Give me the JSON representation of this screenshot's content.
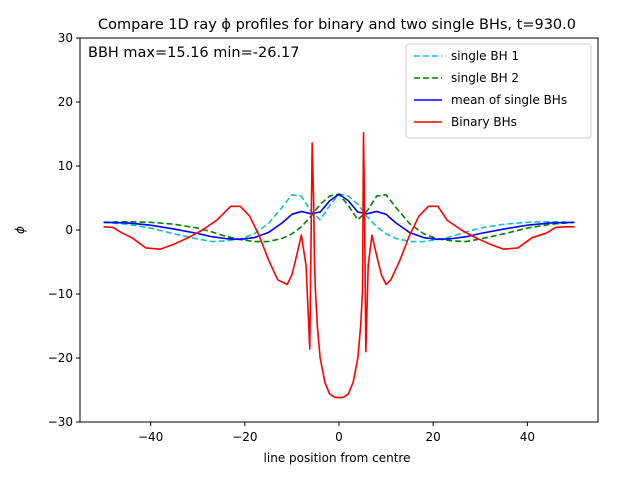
{
  "chart_data": {
    "type": "line",
    "title": "Compare 1D ray ϕ profiles for binary and two single BHs, t=930.0",
    "xlabel": "line position from centre",
    "ylabel": "ϕ",
    "xlim": [
      -55,
      55
    ],
    "ylim": [
      -30,
      30
    ],
    "xticks": [
      -40,
      -20,
      0,
      20,
      40
    ],
    "yticks": [
      -30,
      -20,
      -10,
      0,
      10,
      20,
      30
    ],
    "xtick_labels": [
      "−40",
      "−20",
      "0",
      "20",
      "40"
    ],
    "ytick_labels": [
      "−30",
      "−20",
      "−10",
      "0",
      "10",
      "20",
      "30"
    ],
    "annotation": "BBH max=15.16 min=-26.17",
    "legend_position": "upper-right",
    "grid": false,
    "series": [
      {
        "name": "single BH 1",
        "color": "#17becf",
        "style": "dashed",
        "x": [
          -50,
          -45,
          -40,
          -35,
          -30,
          -27,
          -24,
          -21,
          -18,
          -15,
          -12,
          -10,
          -8,
          -6,
          -4,
          -2,
          0,
          2,
          4,
          6,
          8,
          10,
          12,
          15,
          18,
          21,
          24,
          27,
          30,
          35,
          40,
          45,
          50
        ],
        "y": [
          1.2,
          0.9,
          0.3,
          -0.6,
          -1.4,
          -1.8,
          -1.7,
          -1.4,
          -0.6,
          1.0,
          3.6,
          5.5,
          5.3,
          3.0,
          1.6,
          3.8,
          5.6,
          5.3,
          4.0,
          2.1,
          0.5,
          -0.6,
          -1.3,
          -1.8,
          -1.8,
          -1.5,
          -1.0,
          -0.3,
          0.3,
          0.9,
          1.2,
          1.3,
          1.2
        ]
      },
      {
        "name": "single BH 2",
        "color": "#008000",
        "style": "dashed",
        "x": [
          -50,
          -45,
          -40,
          -35,
          -30,
          -27,
          -24,
          -21,
          -18,
          -15,
          -12,
          -10,
          -8,
          -6,
          -4,
          -2,
          0,
          2,
          4,
          6,
          8,
          10,
          12,
          15,
          18,
          21,
          24,
          27,
          30,
          35,
          40,
          45,
          50
        ],
        "y": [
          1.2,
          1.3,
          1.2,
          0.9,
          0.3,
          -0.3,
          -1.0,
          -1.5,
          -1.8,
          -1.8,
          -1.3,
          -0.6,
          0.5,
          2.1,
          4.0,
          5.3,
          5.6,
          3.8,
          1.6,
          3.0,
          5.3,
          5.5,
          3.6,
          1.0,
          -0.6,
          -1.4,
          -1.7,
          -1.8,
          -1.4,
          -0.6,
          0.3,
          0.9,
          1.2
        ]
      },
      {
        "name": "mean of single BHs",
        "color": "#0000ff",
        "style": "solid",
        "x": [
          -50,
          -45,
          -40,
          -35,
          -30,
          -27,
          -24,
          -21,
          -18,
          -15,
          -12,
          -10,
          -8,
          -6,
          -4,
          -2,
          0,
          2,
          4,
          6,
          8,
          10,
          12,
          15,
          18,
          21,
          24,
          27,
          30,
          35,
          40,
          45,
          50
        ],
        "y": [
          1.2,
          1.1,
          0.75,
          0.15,
          -0.55,
          -1.05,
          -1.35,
          -1.45,
          -1.2,
          -0.4,
          1.15,
          2.45,
          2.9,
          2.55,
          2.8,
          4.55,
          5.6,
          4.55,
          2.8,
          2.55,
          2.9,
          2.45,
          1.15,
          -0.4,
          -1.2,
          -1.45,
          -1.35,
          -1.05,
          -0.55,
          0.15,
          0.75,
          1.1,
          1.2
        ]
      },
      {
        "name": "Binary BHs",
        "color": "#ff0000",
        "style": "solid",
        "x": [
          -50,
          -48,
          -46,
          -44,
          -41,
          -38,
          -35,
          -32,
          -29,
          -26,
          -23,
          -21,
          -19,
          -17,
          -15,
          -13,
          -11,
          -10,
          -9,
          -8,
          -7,
          -6.2,
          -5.7,
          -5.4,
          -5.2,
          -5.0,
          -4.6,
          -4.0,
          -3.0,
          -2.0,
          -1.0,
          0,
          1.0,
          2.0,
          3.0,
          4.0,
          4.6,
          5.0,
          5.2,
          5.4,
          5.7,
          6.2,
          7,
          8,
          9,
          10,
          11,
          13,
          15,
          17,
          19,
          21,
          23,
          26,
          29,
          32,
          35,
          38,
          41,
          44,
          46,
          48,
          50
        ],
        "y": [
          0.5,
          0.4,
          -0.5,
          -1.2,
          -2.8,
          -3.0,
          -2.2,
          -1.2,
          0.0,
          1.5,
          3.7,
          3.7,
          2.2,
          -0.8,
          -4.6,
          -7.8,
          -8.5,
          -7.0,
          -4.0,
          -0.8,
          -5.5,
          -18.6,
          13.6,
          5.0,
          -5.0,
          -9.5,
          -15.0,
          -20.0,
          -23.8,
          -25.6,
          -26.1,
          -26.2,
          -26.1,
          -25.6,
          -23.8,
          -20.0,
          -15.0,
          -9.5,
          15.2,
          5.0,
          -19.0,
          -5.5,
          -0.8,
          -4.0,
          -7.0,
          -8.5,
          -7.8,
          -4.6,
          -0.8,
          2.2,
          3.7,
          3.7,
          1.5,
          0.0,
          -1.2,
          -2.2,
          -3.0,
          -2.8,
          -1.2,
          -0.5,
          0.4,
          0.5,
          0.5
        ]
      }
    ]
  }
}
